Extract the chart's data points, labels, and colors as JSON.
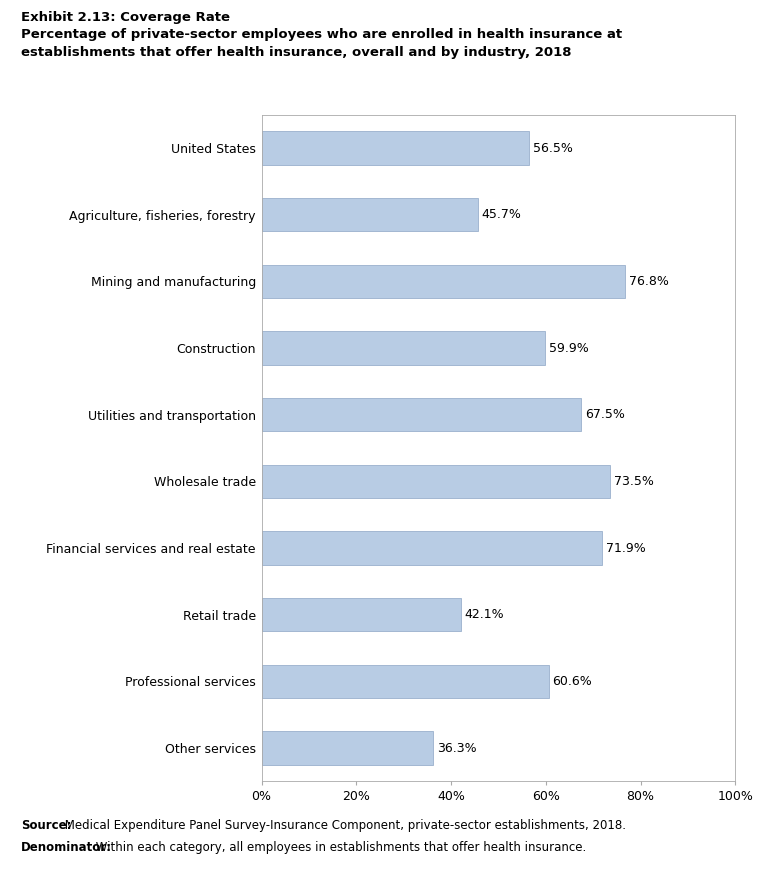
{
  "title_line1": "Exhibit 2.13: Coverage Rate",
  "title_line2": "Percentage of private-sector employees who are enrolled in health insurance at\nestablishments that offer health insurance, overall and by industry, 2018",
  "categories": [
    "Other services",
    "Professional services",
    "Retail trade",
    "Financial services and real estate",
    "Wholesale trade",
    "Utilities and transportation",
    "Construction",
    "Mining and manufacturing",
    "Agriculture, fisheries, forestry",
    "United States"
  ],
  "values": [
    36.3,
    60.6,
    42.1,
    71.9,
    73.5,
    67.5,
    59.9,
    76.8,
    45.7,
    56.5
  ],
  "bar_color": "#b8cce4",
  "bar_edge_color": "#9ab0cc",
  "xlim": [
    0,
    100
  ],
  "xticks": [
    0,
    20,
    40,
    60,
    80,
    100
  ],
  "xticklabels": [
    "0%",
    "20%",
    "40%",
    "60%",
    "80%",
    "100%"
  ],
  "source_bold": "Source:",
  "source_normal": " Medical Expenditure Panel Survey-Insurance Component, private-sector establishments, 2018.",
  "denominator_bold": "Denominator:",
  "denominator_normal": " Within each category, all employees in establishments that offer health insurance.",
  "title_fontsize": 9.5,
  "label_fontsize": 9,
  "tick_fontsize": 9,
  "source_fontsize": 8.5,
  "bar_label_fontsize": 9,
  "background_color": "#ffffff"
}
